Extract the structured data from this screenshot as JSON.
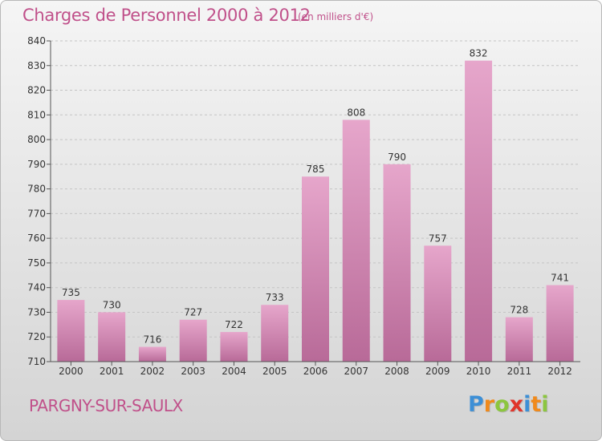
{
  "header": {
    "title": "Charges de Personnel 2000 à 2012",
    "subtitle": "(en milliers d'€)"
  },
  "footer": {
    "commune": "PARGNY-SUR-SAULX",
    "logo": {
      "letters": [
        "P",
        "r",
        "o",
        "x",
        "i",
        "t",
        "i"
      ],
      "colors": [
        "#3d8fd6",
        "#f08a1c",
        "#8cc63f",
        "#e0352b",
        "#3d8fd6",
        "#f08a1c",
        "#8cc63f"
      ]
    }
  },
  "colors": {
    "bar_top": "#e6a6cb",
    "bar_bottom": "#b86a98",
    "text": "#c0508a"
  },
  "chart_data": {
    "type": "bar",
    "categories": [
      "2000",
      "2001",
      "2002",
      "2003",
      "2004",
      "2005",
      "2006",
      "2007",
      "2008",
      "2009",
      "2010",
      "2011",
      "2012"
    ],
    "values": [
      735,
      730,
      716,
      727,
      722,
      733,
      785,
      808,
      790,
      757,
      832,
      728,
      741
    ],
    "ylim": [
      710,
      840
    ],
    "yticks": [
      710,
      720,
      730,
      740,
      750,
      760,
      770,
      780,
      790,
      800,
      810,
      820,
      830,
      840
    ],
    "title": "Charges de Personnel 2000 à 2012",
    "xlabel": "",
    "ylabel": "",
    "grid": true,
    "data_labels": true
  }
}
